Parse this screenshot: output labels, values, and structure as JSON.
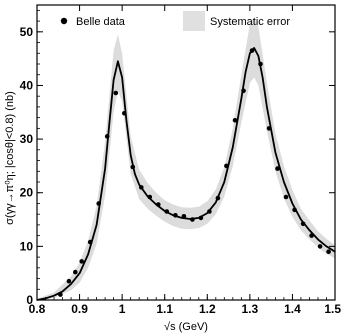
{
  "chart_data": {
    "type": "line",
    "xlabel": "√s  (GeV)",
    "ylabel": "σ(γγ→π⁰η; |cosθ|<0.8)  (nb)",
    "xlim": [
      0.8,
      1.5
    ],
    "ylim": [
      0,
      55
    ],
    "x_ticks": [
      0.8,
      0.9,
      1.0,
      1.1,
      1.2,
      1.3,
      1.4,
      1.5
    ],
    "x_tick_labels": [
      "0.8",
      "0.9",
      "1",
      "1.1",
      "1.2",
      "1.3",
      "1.4",
      "1.5"
    ],
    "y_ticks": [
      0,
      10,
      20,
      30,
      40,
      50
    ],
    "y_tick_labels": [
      "0",
      "10",
      "20",
      "30",
      "40",
      "50"
    ],
    "legend": {
      "position": "top",
      "entries": [
        "Belle  data",
        "Systematic error"
      ]
    },
    "series": [
      {
        "name": "Belle  data",
        "kind": "scatter",
        "x": [
          0.855,
          0.875,
          0.89,
          0.905,
          0.925,
          0.945,
          0.965,
          0.985,
          1.005,
          1.025,
          1.045,
          1.065,
          1.085,
          1.105,
          1.125,
          1.145,
          1.165,
          1.185,
          1.205,
          1.225,
          1.245,
          1.265,
          1.285,
          1.305,
          1.325,
          1.345,
          1.365,
          1.385,
          1.405,
          1.425,
          1.445,
          1.465,
          1.485
        ],
        "y": [
          1.0,
          3.5,
          5.2,
          7.2,
          10.8,
          18.0,
          30.5,
          38.6,
          34.8,
          24.8,
          21.0,
          19.2,
          17.8,
          16.5,
          15.8,
          15.6,
          15.0,
          15.3,
          16.5,
          19.0,
          25.0,
          33.5,
          39.0,
          46.5,
          44.0,
          32.0,
          24.5,
          19.2,
          16.8,
          14.2,
          12.0,
          10.0,
          9.0
        ]
      },
      {
        "name": "",
        "kind": "curve",
        "x": [
          0.8,
          0.82,
          0.84,
          0.86,
          0.88,
          0.9,
          0.92,
          0.94,
          0.96,
          0.97,
          0.98,
          0.99,
          1.0,
          1.01,
          1.02,
          1.03,
          1.04,
          1.06,
          1.08,
          1.1,
          1.12,
          1.14,
          1.16,
          1.18,
          1.2,
          1.22,
          1.24,
          1.26,
          1.28,
          1.29,
          1.3,
          1.31,
          1.32,
          1.33,
          1.34,
          1.36,
          1.38,
          1.4,
          1.42,
          1.44,
          1.46,
          1.48,
          1.5
        ],
        "y": [
          0.0,
          0.3,
          0.8,
          1.6,
          3.0,
          5.0,
          8.5,
          14.0,
          24.5,
          33.0,
          41.0,
          44.5,
          41.5,
          33.5,
          27.0,
          23.5,
          21.5,
          19.3,
          17.8,
          16.6,
          15.8,
          15.3,
          15.1,
          15.3,
          16.2,
          18.2,
          22.0,
          28.5,
          37.5,
          42.5,
          46.0,
          47.0,
          45.5,
          41.5,
          36.0,
          27.5,
          22.0,
          18.0,
          15.0,
          13.0,
          11.3,
          10.0,
          9.0
        ]
      },
      {
        "name": "Systematic error",
        "kind": "band",
        "x": [
          0.8,
          0.84,
          0.88,
          0.9,
          0.92,
          0.94,
          0.96,
          0.98,
          0.99,
          1.0,
          1.02,
          1.04,
          1.06,
          1.08,
          1.1,
          1.12,
          1.14,
          1.16,
          1.18,
          1.2,
          1.22,
          1.24,
          1.26,
          1.28,
          1.3,
          1.31,
          1.32,
          1.34,
          1.36,
          1.38,
          1.4,
          1.42,
          1.44,
          1.46,
          1.48,
          1.5
        ],
        "lower": [
          0.0,
          0.4,
          1.8,
          3.2,
          6.0,
          10.5,
          19.5,
          35.0,
          39.0,
          37.0,
          23.5,
          18.8,
          17.0,
          15.7,
          14.6,
          13.8,
          13.3,
          13.2,
          13.4,
          14.2,
          16.0,
          19.3,
          25.0,
          33.0,
          40.5,
          41.5,
          40.0,
          31.5,
          24.0,
          19.0,
          15.5,
          13.0,
          11.3,
          9.8,
          8.6,
          7.8
        ],
        "upper": [
          0.2,
          1.4,
          4.4,
          7.0,
          11.0,
          17.5,
          29.5,
          46.5,
          49.5,
          46.0,
          30.5,
          24.3,
          21.8,
          20.0,
          18.6,
          17.8,
          17.3,
          17.2,
          17.4,
          18.4,
          20.6,
          24.8,
          32.0,
          42.0,
          51.5,
          52.5,
          51.0,
          40.5,
          31.0,
          25.0,
          20.5,
          17.0,
          14.8,
          12.8,
          11.4,
          10.2
        ]
      }
    ]
  }
}
